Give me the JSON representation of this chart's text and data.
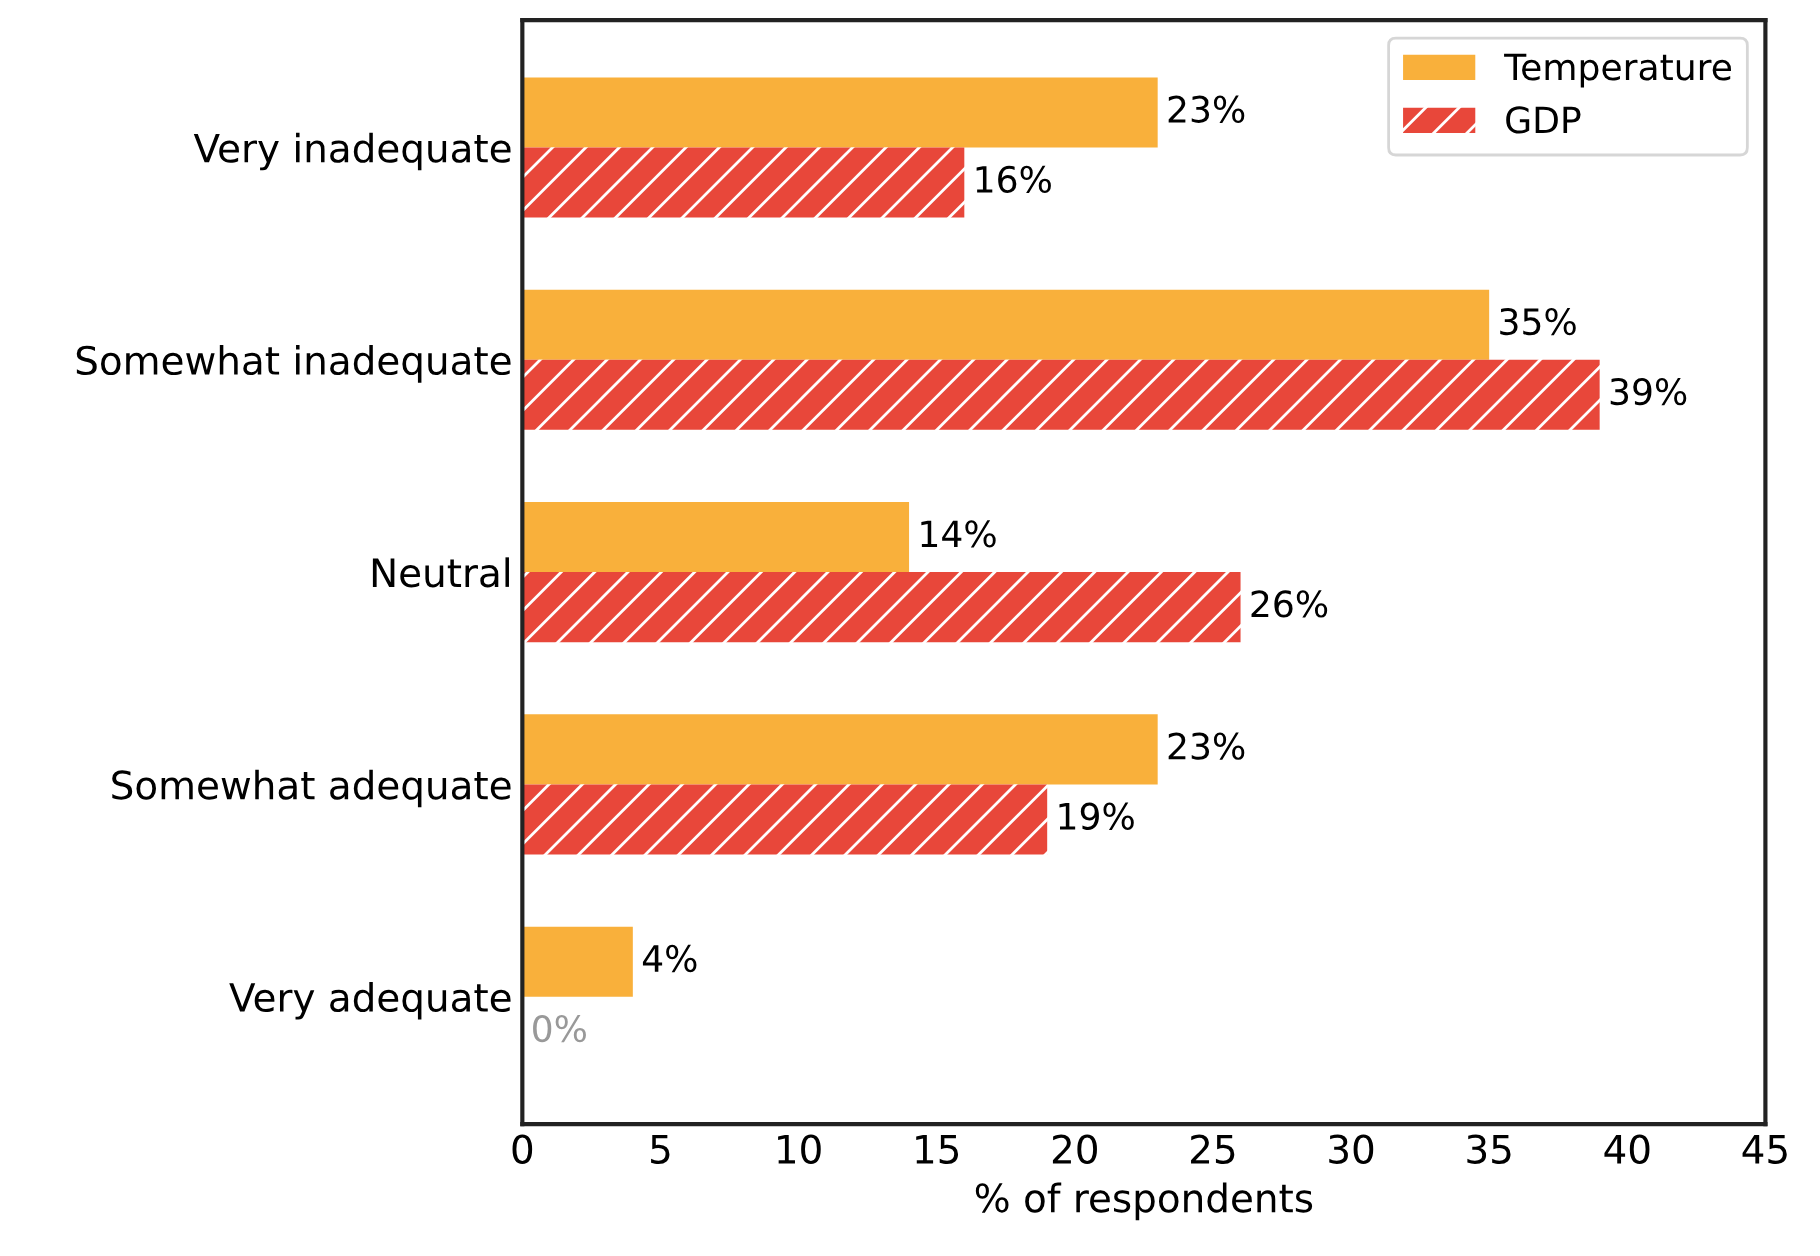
{
  "chart_data": {
    "type": "bar",
    "orientation": "horizontal",
    "xlabel": "% of respondents",
    "categories": [
      "Very inadequate",
      "Somewhat inadequate",
      "Neutral",
      "Somewhat adequate",
      "Very adequate"
    ],
    "series": [
      {
        "name": "Temperature",
        "color": "#f9b03b",
        "values": [
          23,
          35,
          14,
          23,
          4
        ],
        "value_labels": [
          "23%",
          "35%",
          "14%",
          "23%",
          "4%"
        ]
      },
      {
        "name": "GDP",
        "color": "#e8473a",
        "values": [
          16,
          39,
          26,
          19,
          0
        ],
        "value_labels": [
          "16%",
          "39%",
          "26%",
          "19%",
          "0%"
        ]
      }
    ],
    "xlim": [
      0,
      45
    ],
    "xticks": [
      0,
      5,
      10,
      15,
      20,
      25,
      30,
      35,
      40,
      45
    ],
    "grid": false,
    "legend": "top right"
  }
}
